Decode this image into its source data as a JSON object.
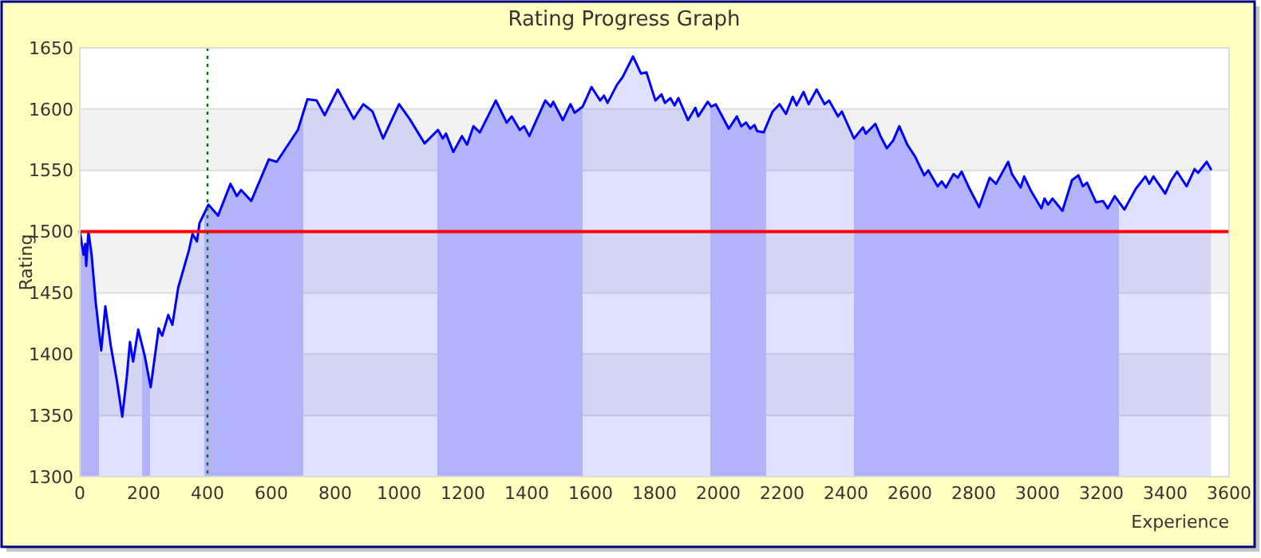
{
  "chart_data": {
    "type": "area",
    "title": "Rating Progress Graph",
    "xlabel": "Experience",
    "ylabel": "Rating",
    "xlim": [
      0,
      3600
    ],
    "xticks": [
      0,
      200,
      400,
      600,
      800,
      1000,
      1200,
      1400,
      1600,
      1800,
      2000,
      2200,
      2400,
      2600,
      2800,
      3000,
      3200,
      3400,
      3600
    ],
    "ylim": [
      1300,
      1650
    ],
    "yticks": [
      1300,
      1350,
      1400,
      1450,
      1500,
      1550,
      1600,
      1650
    ],
    "grid": "y",
    "marker": "none",
    "line_style": "solid",
    "ref_lines": [
      {
        "axis": "y",
        "value": 1500,
        "color": "#ff0000",
        "line_style": "solid"
      },
      {
        "axis": "x",
        "value": 400,
        "color": "#007700",
        "line_style": "dotted"
      }
    ],
    "bands": [
      {
        "axis": "x",
        "from": 0,
        "to": 60,
        "color": "#ccccfa"
      },
      {
        "axis": "x",
        "from": 195,
        "to": 220,
        "color": "#ccccfa"
      },
      {
        "axis": "x",
        "from": 390,
        "to": 700,
        "color": "#ccccfa"
      },
      {
        "axis": "x",
        "from": 1120,
        "to": 1575,
        "color": "#ccccfa"
      },
      {
        "axis": "x",
        "from": 1975,
        "to": 2150,
        "color": "#ccccfa"
      },
      {
        "axis": "x",
        "from": 2425,
        "to": 3255,
        "color": "#ccccfa"
      }
    ],
    "series": [
      {
        "color": "#0000ff",
        "x": [
          0,
          12,
          17,
          20,
          27,
          37,
          50,
          67,
          80,
          97,
          117,
          133,
          147,
          157,
          167,
          183,
          203,
          222,
          247,
          258,
          277,
          290,
          308,
          342,
          353,
          367,
          375,
          403,
          433,
          472,
          492,
          505,
          537,
          592,
          617,
          683,
          713,
          742,
          767,
          808,
          858,
          888,
          917,
          950,
          1000,
          1033,
          1080,
          1122,
          1137,
          1147,
          1170,
          1197,
          1213,
          1233,
          1253,
          1303,
          1337,
          1353,
          1378,
          1392,
          1408,
          1458,
          1475,
          1483,
          1513,
          1537,
          1550,
          1575,
          1603,
          1630,
          1642,
          1653,
          1683,
          1700,
          1733,
          1758,
          1775,
          1803,
          1822,
          1833,
          1850,
          1863,
          1875,
          1905,
          1928,
          1937,
          1967,
          1978,
          1992,
          2033,
          2058,
          2072,
          2087,
          2100,
          2113,
          2122,
          2142,
          2170,
          2192,
          2212,
          2233,
          2245,
          2267,
          2283,
          2308,
          2333,
          2347,
          2375,
          2387,
          2425,
          2453,
          2462,
          2492,
          2508,
          2528,
          2547,
          2567,
          2592,
          2617,
          2645,
          2658,
          2687,
          2700,
          2713,
          2737,
          2750,
          2762,
          2787,
          2817,
          2850,
          2870,
          2908,
          2920,
          2947,
          2958,
          2980,
          3012,
          3022,
          3033,
          3047,
          3078,
          3108,
          3128,
          3142,
          3155,
          3183,
          3205,
          3220,
          3242,
          3272,
          3308,
          3338,
          3350,
          3363,
          3400,
          3417,
          3437,
          3467,
          3492,
          3503,
          3530,
          3543
        ],
        "values": [
          1500,
          1481,
          1490,
          1472,
          1500,
          1481,
          1442,
          1403,
          1439,
          1407,
          1377,
          1349,
          1381,
          1410,
          1394,
          1420,
          1399,
          1373,
          1421,
          1415,
          1432,
          1424,
          1454,
          1485,
          1498,
          1492,
          1507,
          1522,
          1513,
          1539,
          1529,
          1534,
          1525,
          1559,
          1557,
          1583,
          1608,
          1607,
          1595,
          1616,
          1592,
          1604,
          1598,
          1576,
          1604,
          1592,
          1572,
          1583,
          1576,
          1580,
          1565,
          1578,
          1571,
          1586,
          1581,
          1607,
          1589,
          1594,
          1583,
          1586,
          1578,
          1607,
          1602,
          1606,
          1591,
          1604,
          1597,
          1602,
          1618,
          1607,
          1611,
          1605,
          1620,
          1626,
          1643,
          1629,
          1630,
          1607,
          1612,
          1605,
          1609,
          1603,
          1609,
          1591,
          1601,
          1594,
          1606,
          1602,
          1604,
          1584,
          1594,
          1586,
          1589,
          1584,
          1587,
          1582,
          1581,
          1598,
          1604,
          1596,
          1610,
          1603,
          1614,
          1604,
          1616,
          1604,
          1607,
          1594,
          1598,
          1576,
          1585,
          1580,
          1588,
          1578,
          1568,
          1574,
          1586,
          1571,
          1561,
          1546,
          1550,
          1537,
          1541,
          1536,
          1547,
          1544,
          1549,
          1535,
          1520,
          1544,
          1539,
          1557,
          1547,
          1536,
          1545,
          1533,
          1519,
          1527,
          1522,
          1527,
          1517,
          1542,
          1546,
          1537,
          1540,
          1524,
          1525,
          1519,
          1529,
          1518,
          1535,
          1545,
          1539,
          1545,
          1531,
          1541,
          1549,
          1537,
          1551,
          1548,
          1557,
          1551
        ]
      }
    ]
  }
}
